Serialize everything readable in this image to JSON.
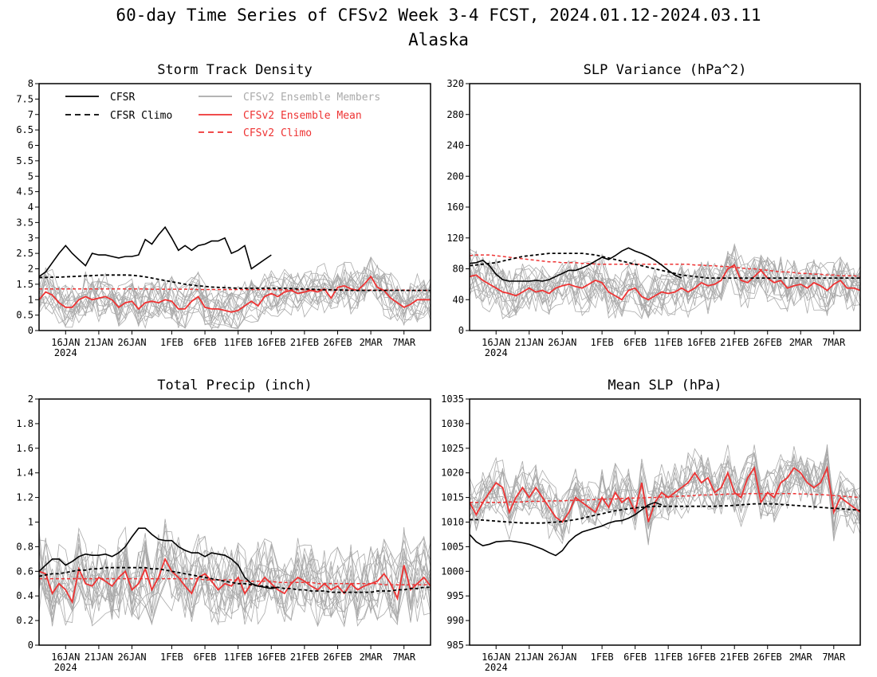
{
  "page": {
    "title": "60-day Time Series of CFSv2 Week 3-4 FCST, 2024.01.12-2024.03.11",
    "subtitle": "Alaska"
  },
  "legend": {
    "cfsr": "CFSR",
    "cfsr_climo": "CFSR Climo",
    "members": "CFSv2 Ensemble Members",
    "ens_mean": "CFSv2 Ensemble Mean",
    "cfsv2_climo": "CFSv2 Climo"
  },
  "colors": {
    "obs": "#000000",
    "members": "#aaaaaa",
    "forecast": "#ee3333"
  },
  "x_axis": {
    "tick_days": [
      4,
      9,
      14,
      20,
      25,
      30,
      35,
      40,
      45,
      50,
      55
    ],
    "tick_labels": [
      "16JAN",
      "21JAN",
      "26JAN",
      "1FEB",
      "6FEB",
      "11FEB",
      "16FEB",
      "21FEB",
      "26FEB",
      "2MAR",
      "7MAR"
    ],
    "year_label": "2024",
    "n_days": 60
  },
  "chart_data": [
    {
      "type": "line",
      "title": "Storm Track Density",
      "ylim": [
        0,
        8
      ],
      "yticks": [
        "0",
        "0.5",
        "1",
        "1.5",
        "2",
        "2.5",
        "3",
        "3.5",
        "4",
        "4.5",
        "5",
        "5.5",
        "6",
        "6.5",
        "7",
        "7.5",
        "8"
      ],
      "cfsr": [
        1.75,
        1.9,
        2.2,
        2.5,
        2.75,
        2.5,
        2.3,
        2.1,
        2.5,
        2.45,
        2.45,
        2.4,
        2.35,
        2.4,
        2.4,
        2.45,
        2.95,
        2.8,
        3.1,
        3.35,
        3.0,
        2.6,
        2.75,
        2.6,
        2.75,
        2.8,
        2.9,
        2.9,
        3.0,
        2.5,
        2.6,
        2.75,
        2.0,
        2.15,
        2.3,
        2.45
      ],
      "cfsr_climo": [
        1.72,
        1.72,
        1.73,
        1.73,
        1.74,
        1.75,
        1.76,
        1.77,
        1.78,
        1.79,
        1.8,
        1.8,
        1.8,
        1.8,
        1.79,
        1.77,
        1.74,
        1.7,
        1.66,
        1.62,
        1.58,
        1.54,
        1.5,
        1.47,
        1.45,
        1.43,
        1.41,
        1.4,
        1.39,
        1.38,
        1.37,
        1.37,
        1.37,
        1.37,
        1.37,
        1.37,
        1.37,
        1.37,
        1.36,
        1.35,
        1.35,
        1.34,
        1.33,
        1.32,
        1.32,
        1.31,
        1.31,
        1.3,
        1.3,
        1.3,
        1.3,
        1.3,
        1.3,
        1.3,
        1.3,
        1.3,
        1.3,
        1.3,
        1.3,
        1.3
      ],
      "ens_mean": [
        1.0,
        1.25,
        1.15,
        0.9,
        0.75,
        0.75,
        1.0,
        1.1,
        1.0,
        1.05,
        1.1,
        1.0,
        0.75,
        0.9,
        0.95,
        0.7,
        0.9,
        0.95,
        0.9,
        1.0,
        0.95,
        0.7,
        0.7,
        0.95,
        1.1,
        0.75,
        0.7,
        0.7,
        0.65,
        0.6,
        0.65,
        0.8,
        0.95,
        0.8,
        1.1,
        1.2,
        1.1,
        1.25,
        1.3,
        1.2,
        1.25,
        1.3,
        1.25,
        1.35,
        1.05,
        1.4,
        1.45,
        1.35,
        1.3,
        1.5,
        1.75,
        1.4,
        1.3,
        1.05,
        0.9,
        0.75,
        0.85,
        1.0,
        1.0,
        1.0
      ],
      "cfsv2_climo": [
        1.35,
        1.35,
        1.35,
        1.35,
        1.35,
        1.35,
        1.35,
        1.35,
        1.35,
        1.35,
        1.35,
        1.35,
        1.35,
        1.35,
        1.35,
        1.35,
        1.35,
        1.34,
        1.34,
        1.34,
        1.34,
        1.34,
        1.34,
        1.34,
        1.33,
        1.33,
        1.33,
        1.33,
        1.33,
        1.33,
        1.33,
        1.33,
        1.33,
        1.33,
        1.33,
        1.33,
        1.32,
        1.32,
        1.32,
        1.32,
        1.32,
        1.32,
        1.32,
        1.32,
        1.32,
        1.32,
        1.31,
        1.31,
        1.31,
        1.31,
        1.31,
        1.31,
        1.31,
        1.31,
        1.31,
        1.31,
        1.3,
        1.3,
        1.3,
        1.3
      ],
      "members_envelope": {
        "spread": 0.8,
        "min": 0.0
      }
    },
    {
      "type": "line",
      "title": "SLP Variance (hPa^2)",
      "ylim": [
        0,
        320
      ],
      "yticks": [
        "0",
        "40",
        "80",
        "120",
        "160",
        "200",
        "240",
        "280",
        "320"
      ],
      "cfsr": [
        87,
        88,
        91,
        84,
        73,
        66,
        64,
        64,
        64,
        64,
        65,
        64,
        66,
        70,
        74,
        78,
        78,
        81,
        85,
        90,
        95,
        92,
        97,
        103,
        107,
        103,
        100,
        96,
        91,
        85,
        78,
        72,
        68
      ],
      "cfsr_climo": [
        84,
        85,
        86,
        87,
        88,
        90,
        92,
        94,
        96,
        97,
        98,
        99,
        100,
        100,
        100,
        100,
        100,
        100,
        99,
        98,
        96,
        94,
        92,
        90,
        88,
        86,
        84,
        82,
        80,
        78,
        76,
        74,
        72,
        71,
        70,
        69,
        68,
        68,
        68,
        68,
        68,
        68,
        68,
        68,
        68,
        68,
        68,
        68,
        68,
        68,
        68,
        68,
        68,
        68,
        68,
        68,
        68,
        68,
        68,
        68
      ],
      "ens_mean": [
        70,
        72,
        65,
        60,
        55,
        50,
        48,
        45,
        50,
        55,
        50,
        52,
        48,
        55,
        58,
        60,
        57,
        55,
        60,
        65,
        62,
        50,
        45,
        40,
        52,
        55,
        44,
        40,
        45,
        50,
        48,
        50,
        55,
        50,
        55,
        62,
        58,
        60,
        65,
        80,
        85,
        65,
        62,
        70,
        78,
        68,
        62,
        65,
        55,
        58,
        60,
        55,
        62,
        58,
        52,
        60,
        65,
        55,
        55,
        52
      ],
      "cfsv2_climo": [
        97,
        98,
        98,
        98,
        97,
        96,
        95,
        94,
        93,
        92,
        91,
        90,
        89,
        89,
        88,
        88,
        88,
        87,
        87,
        86,
        86,
        86,
        86,
        86,
        86,
        86,
        86,
        86,
        86,
        86,
        86,
        86,
        86,
        86,
        85,
        85,
        84,
        84,
        83,
        83,
        82,
        81,
        80,
        80,
        79,
        78,
        77,
        76,
        76,
        75,
        74,
        74,
        73,
        73,
        72,
        72,
        71,
        71,
        71,
        70
      ],
      "members_envelope": {
        "spread": 35,
        "min": 15
      }
    },
    {
      "type": "line",
      "title": "Total Precip (inch)",
      "ylim": [
        0,
        2
      ],
      "yticks": [
        "0",
        "0.2",
        "0.4",
        "0.6",
        "0.8",
        "1",
        "1.2",
        "1.4",
        "1.6",
        "1.8",
        "2"
      ],
      "cfsr": [
        0.6,
        0.65,
        0.7,
        0.7,
        0.65,
        0.68,
        0.72,
        0.74,
        0.73,
        0.73,
        0.74,
        0.72,
        0.75,
        0.8,
        0.88,
        0.95,
        0.95,
        0.9,
        0.86,
        0.85,
        0.85,
        0.8,
        0.77,
        0.75,
        0.75,
        0.72,
        0.75,
        0.74,
        0.73,
        0.7,
        0.65,
        0.55,
        0.5,
        0.48,
        0.47,
        0.46,
        0.47
      ],
      "cfsr_climo": [
        0.56,
        0.57,
        0.58,
        0.58,
        0.59,
        0.6,
        0.61,
        0.61,
        0.62,
        0.62,
        0.63,
        0.63,
        0.63,
        0.63,
        0.63,
        0.63,
        0.63,
        0.62,
        0.62,
        0.61,
        0.6,
        0.59,
        0.58,
        0.57,
        0.56,
        0.55,
        0.54,
        0.53,
        0.52,
        0.51,
        0.5,
        0.5,
        0.49,
        0.48,
        0.48,
        0.47,
        0.47,
        0.46,
        0.46,
        0.45,
        0.45,
        0.44,
        0.44,
        0.44,
        0.43,
        0.43,
        0.43,
        0.43,
        0.43,
        0.43,
        0.43,
        0.44,
        0.44,
        0.44,
        0.45,
        0.45,
        0.46,
        0.46,
        0.47,
        0.47
      ],
      "ens_mean": [
        0.6,
        0.58,
        0.42,
        0.5,
        0.45,
        0.35,
        0.62,
        0.5,
        0.48,
        0.55,
        0.52,
        0.48,
        0.55,
        0.6,
        0.45,
        0.5,
        0.62,
        0.45,
        0.55,
        0.7,
        0.6,
        0.55,
        0.48,
        0.42,
        0.55,
        0.58,
        0.52,
        0.45,
        0.5,
        0.48,
        0.55,
        0.42,
        0.5,
        0.48,
        0.55,
        0.5,
        0.45,
        0.42,
        0.5,
        0.55,
        0.52,
        0.48,
        0.45,
        0.5,
        0.45,
        0.48,
        0.42,
        0.5,
        0.45,
        0.48,
        0.5,
        0.52,
        0.58,
        0.5,
        0.38,
        0.65,
        0.45,
        0.5,
        0.55,
        0.48
      ],
      "cfsv2_climo": [
        0.54,
        0.54,
        0.54,
        0.54,
        0.54,
        0.54,
        0.54,
        0.54,
        0.54,
        0.54,
        0.54,
        0.54,
        0.54,
        0.54,
        0.54,
        0.54,
        0.54,
        0.54,
        0.54,
        0.54,
        0.54,
        0.54,
        0.54,
        0.54,
        0.54,
        0.53,
        0.53,
        0.53,
        0.53,
        0.53,
        0.53,
        0.52,
        0.52,
        0.52,
        0.52,
        0.52,
        0.51,
        0.51,
        0.51,
        0.51,
        0.51,
        0.51,
        0.5,
        0.5,
        0.5,
        0.5,
        0.5,
        0.5,
        0.5,
        0.5,
        0.5,
        0.5,
        0.49,
        0.49,
        0.49,
        0.49,
        0.49,
        0.49,
        0.49,
        0.49
      ],
      "members_envelope": {
        "spread": 0.35,
        "min": 0.15
      }
    },
    {
      "type": "line",
      "title": "Mean SLP (hPa)",
      "ylim": [
        985,
        1035
      ],
      "yticks": [
        "985",
        "990",
        "995",
        "1000",
        "1005",
        "1010",
        "1015",
        "1020",
        "1025",
        "1030",
        "1035"
      ],
      "cfsr": [
        1007.5,
        1006,
        1005.2,
        1005.5,
        1006,
        1006.1,
        1006.2,
        1006,
        1005.8,
        1005.5,
        1005,
        1004.5,
        1003.8,
        1003.2,
        1004.2,
        1006,
        1007.2,
        1008,
        1008.4,
        1008.8,
        1009.2,
        1009.8,
        1010.2,
        1010.3,
        1010.8,
        1011.5,
        1012.5,
        1013.5,
        1014,
        1013.5
      ],
      "cfsr_climo": [
        1010.5,
        1010.5,
        1010.4,
        1010.3,
        1010.2,
        1010.1,
        1010,
        1009.9,
        1009.8,
        1009.8,
        1009.8,
        1009.8,
        1009.9,
        1010,
        1010.1,
        1010.3,
        1010.5,
        1010.8,
        1011.1,
        1011.4,
        1011.7,
        1012,
        1012.3,
        1012.5,
        1012.7,
        1012.9,
        1013,
        1013.1,
        1013.2,
        1013.2,
        1013.2,
        1013.2,
        1013.2,
        1013.2,
        1013.2,
        1013.2,
        1013.2,
        1013.2,
        1013.3,
        1013.3,
        1013.4,
        1013.5,
        1013.6,
        1013.7,
        1013.7,
        1013.7,
        1013.7,
        1013.6,
        1013.5,
        1013.4,
        1013.3,
        1013.2,
        1013.1,
        1013,
        1012.9,
        1012.8,
        1012.7,
        1012.6,
        1012.5,
        1012.4
      ],
      "ens_mean": [
        1014,
        1011.5,
        1014,
        1016,
        1018,
        1017,
        1012,
        1015,
        1017,
        1015,
        1017,
        1015,
        1013,
        1011,
        1010,
        1012,
        1015,
        1014,
        1013,
        1012,
        1015,
        1013,
        1016,
        1014,
        1015,
        1012,
        1018,
        1010,
        1014,
        1016,
        1015,
        1016,
        1017,
        1018,
        1020,
        1018,
        1019,
        1016,
        1017,
        1020,
        1016,
        1015,
        1019,
        1021,
        1014,
        1016,
        1015,
        1018,
        1019,
        1021,
        1020,
        1018,
        1017,
        1018,
        1021,
        1012,
        1015,
        1014,
        1013,
        1012
      ],
      "cfsv2_climo": [
        1014,
        1014,
        1014,
        1014,
        1014,
        1014,
        1014.1,
        1014.1,
        1014.1,
        1014.2,
        1014.2,
        1014.2,
        1014.3,
        1014.3,
        1014.3,
        1014.4,
        1014.4,
        1014.5,
        1014.5,
        1014.6,
        1014.6,
        1014.7,
        1014.7,
        1014.8,
        1014.8,
        1014.9,
        1014.9,
        1015,
        1015,
        1015.1,
        1015.1,
        1015.2,
        1015.3,
        1015.3,
        1015.4,
        1015.5,
        1015.5,
        1015.6,
        1015.6,
        1015.7,
        1015.7,
        1015.7,
        1015.8,
        1015.8,
        1015.8,
        1015.8,
        1015.8,
        1015.8,
        1015.8,
        1015.8,
        1015.7,
        1015.7,
        1015.6,
        1015.6,
        1015.5,
        1015.4,
        1015.3,
        1015.2,
        1015.1,
        1015
      ],
      "members_envelope": {
        "spread": 6,
        "min": 985
      }
    }
  ]
}
